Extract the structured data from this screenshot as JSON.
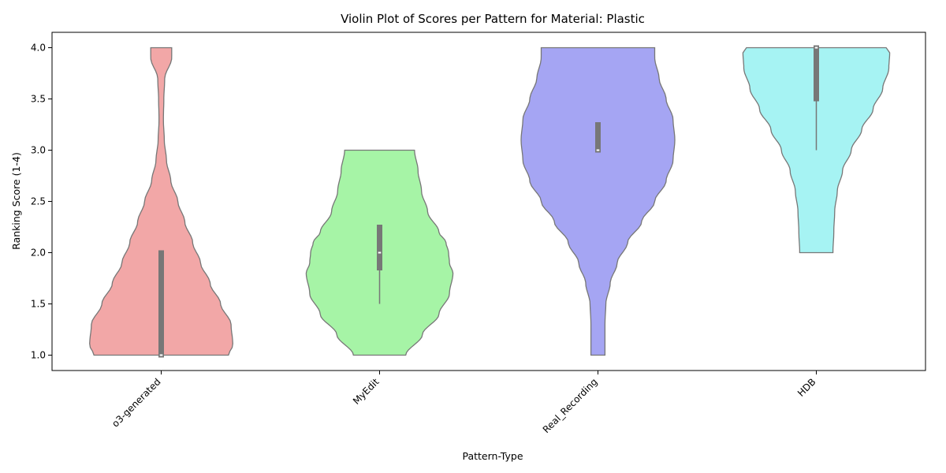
{
  "chart_data": {
    "type": "violin",
    "title": "Violin Plot of Scores per Pattern for Material: Plastic",
    "xlabel": "Pattern-Type",
    "ylabel": "Ranking Score (1-4)",
    "ylim": [
      0.85,
      4.15
    ],
    "yticks": [
      "1.0",
      "1.5",
      "2.0",
      "2.5",
      "3.0",
      "3.5",
      "4.0"
    ],
    "grid": false,
    "categories": [
      "o3-generated",
      "MyEdit",
      "Real_Recording",
      "HDB"
    ],
    "series": [
      {
        "category": "o3-generated",
        "color": "#f2a7a7",
        "min": 1.0,
        "max": 4.0,
        "q1": 1.0,
        "median": 1.0,
        "q3": 2.0,
        "whisker_low": 1.0,
        "whisker_high": 2.0,
        "density": [
          [
            1.0,
            0.77
          ],
          [
            1.1,
            0.82
          ],
          [
            1.3,
            0.8
          ],
          [
            1.5,
            0.68
          ],
          [
            1.7,
            0.56
          ],
          [
            1.9,
            0.45
          ],
          [
            2.1,
            0.36
          ],
          [
            2.3,
            0.27
          ],
          [
            2.5,
            0.19
          ],
          [
            2.7,
            0.11
          ],
          [
            2.9,
            0.06
          ],
          [
            3.1,
            0.035
          ],
          [
            3.3,
            0.025
          ],
          [
            3.5,
            0.03
          ],
          [
            3.7,
            0.04
          ],
          [
            3.9,
            0.12
          ],
          [
            4.0,
            0.12
          ]
        ]
      },
      {
        "category": "MyEdit",
        "color": "#a6f4a6",
        "min": 1.0,
        "max": 3.0,
        "q1": 1.85,
        "median": 2.0,
        "q3": 2.25,
        "whisker_low": 1.5,
        "whisker_high": 2.25,
        "density": [
          [
            1.0,
            0.3
          ],
          [
            1.2,
            0.49
          ],
          [
            1.4,
            0.68
          ],
          [
            1.6,
            0.8
          ],
          [
            1.8,
            0.84
          ],
          [
            1.9,
            0.8
          ],
          [
            2.0,
            0.79
          ],
          [
            2.1,
            0.76
          ],
          [
            2.2,
            0.68
          ],
          [
            2.4,
            0.55
          ],
          [
            2.6,
            0.48
          ],
          [
            2.8,
            0.44
          ],
          [
            3.0,
            0.4
          ]
        ]
      },
      {
        "category": "Real_Recording",
        "color": "#a5a5f3",
        "min": 1.0,
        "max": 4.0,
        "q1": 3.0,
        "median": 3.0,
        "q3": 3.25,
        "whisker_low": 3.0,
        "whisker_high": 3.25,
        "density": [
          [
            1.0,
            0.08
          ],
          [
            1.3,
            0.08
          ],
          [
            1.5,
            0.09
          ],
          [
            1.7,
            0.14
          ],
          [
            1.9,
            0.22
          ],
          [
            2.1,
            0.34
          ],
          [
            2.3,
            0.5
          ],
          [
            2.5,
            0.65
          ],
          [
            2.7,
            0.78
          ],
          [
            2.9,
            0.86
          ],
          [
            3.1,
            0.88
          ],
          [
            3.3,
            0.86
          ],
          [
            3.5,
            0.78
          ],
          [
            3.7,
            0.7
          ],
          [
            3.9,
            0.65
          ],
          [
            4.0,
            0.65
          ]
        ]
      },
      {
        "category": "HDB",
        "color": "#a6f3f3",
        "min": 2.0,
        "max": 4.0,
        "q1": 3.5,
        "median": 4.0,
        "q3": 4.0,
        "whisker_low": 3.0,
        "whisker_high": 4.0,
        "density": [
          [
            2.0,
            0.19
          ],
          [
            2.2,
            0.2
          ],
          [
            2.4,
            0.21
          ],
          [
            2.6,
            0.24
          ],
          [
            2.8,
            0.3
          ],
          [
            3.0,
            0.4
          ],
          [
            3.2,
            0.52
          ],
          [
            3.4,
            0.65
          ],
          [
            3.6,
            0.76
          ],
          [
            3.8,
            0.83
          ],
          [
            3.95,
            0.84
          ],
          [
            4.0,
            0.8
          ]
        ]
      }
    ]
  }
}
